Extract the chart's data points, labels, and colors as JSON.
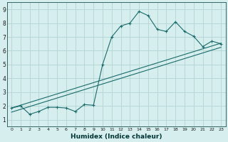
{
  "xlabel": "Humidex (Indice chaleur)",
  "bg_color": "#d6eeee",
  "grid_color": "#b8d8d8",
  "line_color": "#1a6b6b",
  "xlim": [
    -0.5,
    23.5
  ],
  "ylim": [
    0.5,
    9.5
  ],
  "xticks": [
    0,
    1,
    2,
    3,
    4,
    5,
    6,
    7,
    8,
    9,
    10,
    11,
    12,
    13,
    14,
    15,
    16,
    17,
    18,
    19,
    20,
    21,
    22,
    23
  ],
  "yticks": [
    1,
    2,
    3,
    4,
    5,
    6,
    7,
    8,
    9
  ],
  "curve1_x": [
    0,
    1,
    2,
    3,
    4,
    5,
    6,
    7,
    8,
    9,
    10,
    11,
    12,
    13,
    14,
    15,
    16,
    17,
    18,
    19,
    20,
    21,
    22,
    23
  ],
  "curve1_y": [
    1.85,
    2.0,
    1.4,
    1.6,
    1.9,
    1.9,
    1.85,
    1.6,
    2.1,
    2.05,
    5.0,
    7.0,
    7.8,
    8.0,
    8.85,
    8.55,
    7.55,
    7.4,
    8.1,
    7.4,
    7.05,
    6.3,
    6.7,
    6.5
  ],
  "line1_x": [
    0,
    23
  ],
  "line1_y": [
    1.85,
    6.55
  ],
  "line2_x": [
    0,
    23
  ],
  "line2_y": [
    1.55,
    6.25
  ]
}
